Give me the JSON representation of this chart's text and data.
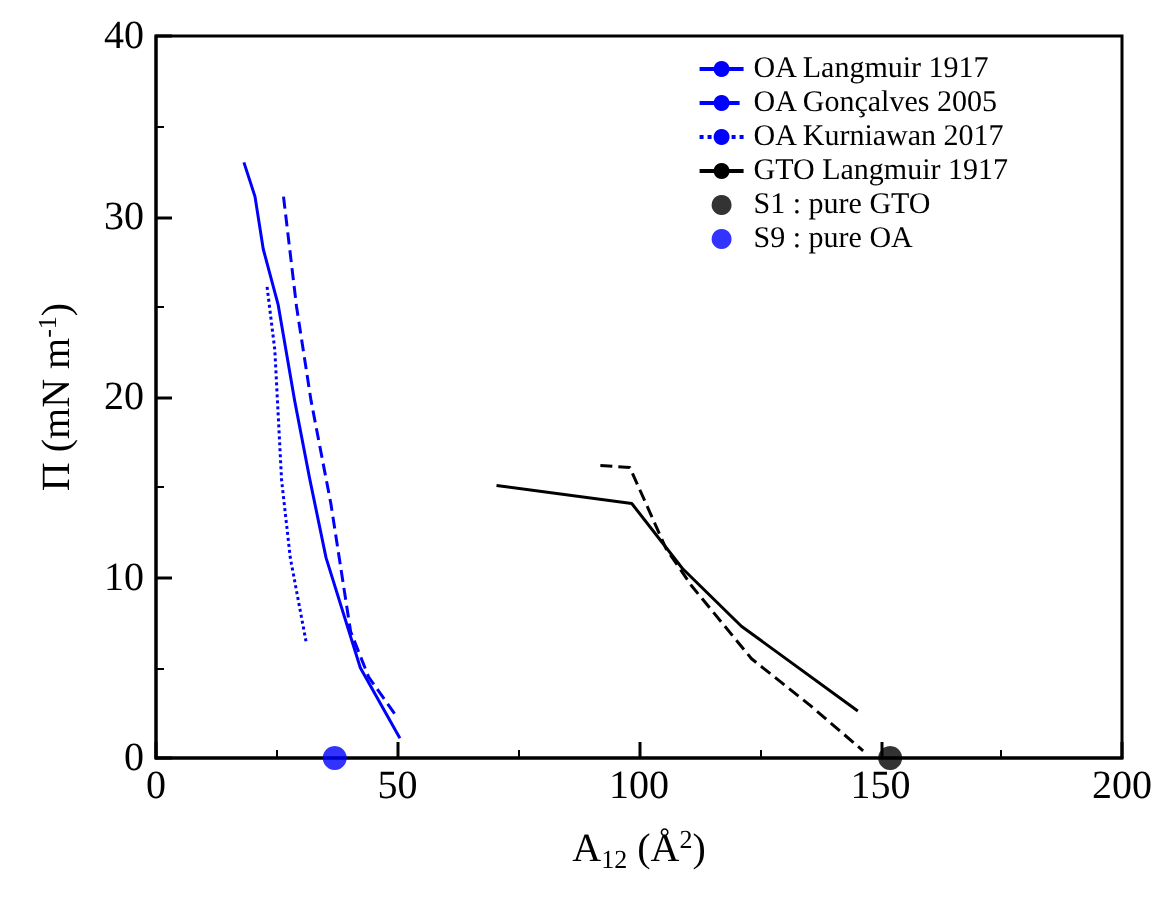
{
  "chart_data": {
    "type": "line",
    "xlabel": "A$_{12}$ (Å$^{2}$)",
    "ylabel": "Π (mN m$^{-1}$)",
    "xlim": [
      0,
      200
    ],
    "xticks": [
      0,
      50,
      100,
      150,
      200
    ],
    "ylim": [
      0,
      40
    ],
    "yticks": [
      0,
      10,
      20,
      30,
      40
    ],
    "grid": false,
    "legend": "top right",
    "marker": "none",
    "series": [
      {
        "name": "OA Langmuir 1917",
        "color": "#0000ff",
        "line_style": "solid",
        "x": [
          18.2,
          20.5,
          22.2,
          25.3,
          28.7,
          31.8,
          35.2,
          42.3,
          50.5
        ],
        "values": [
          33.0,
          31.1,
          28.2,
          25.1,
          19.8,
          15.5,
          11.1,
          5.0,
          1.1
        ]
      },
      {
        "name": "OA Gonçalves 2005",
        "color": "#0000ff",
        "line_style": "dashed",
        "x": [
          26.4,
          29.1,
          32.1,
          36.2,
          40.3,
          44,
          49.8
        ],
        "values": [
          31.1,
          25.0,
          19.8,
          14.1,
          7.0,
          4.5,
          2.3
        ]
      },
      {
        "name": "OA Kurniawan 2017",
        "color": "#0000ff",
        "line_style": "dotted",
        "x": [
          23.0,
          24.6,
          26.0,
          27.8,
          31.1
        ],
        "values": [
          26.1,
          22.6,
          15.4,
          11.1,
          6.4
        ]
      },
      {
        "name": "GTO Langmuir 1917",
        "color": "#000000",
        "line_style": "solid",
        "x": [
          70.5,
          98.5,
          109,
          121.2,
          145.3
        ],
        "values": [
          15.1,
          14.1,
          10.5,
          7.3,
          2.6
        ]
      },
      {
        "color": "#000000",
        "line_style": "dashed",
        "x": [
          92,
          98.1,
          105.6,
          111,
          123.3,
          135.5,
          146.4
        ],
        "values": [
          16.2,
          16.1,
          11.6,
          9.5,
          5.5,
          2.9,
          0.4
        ]
      },
      {
        "name": "S1 : pure GTO",
        "type": "scatter",
        "marker": "circle",
        "color": "#000000",
        "x": [
          152
        ],
        "values": [
          0
        ]
      },
      {
        "name": "S9 : pure OA",
        "type": "scatter",
        "marker": "circle",
        "color": "#0000ff",
        "x": [
          37
        ],
        "values": [
          0
        ]
      }
    ]
  }
}
